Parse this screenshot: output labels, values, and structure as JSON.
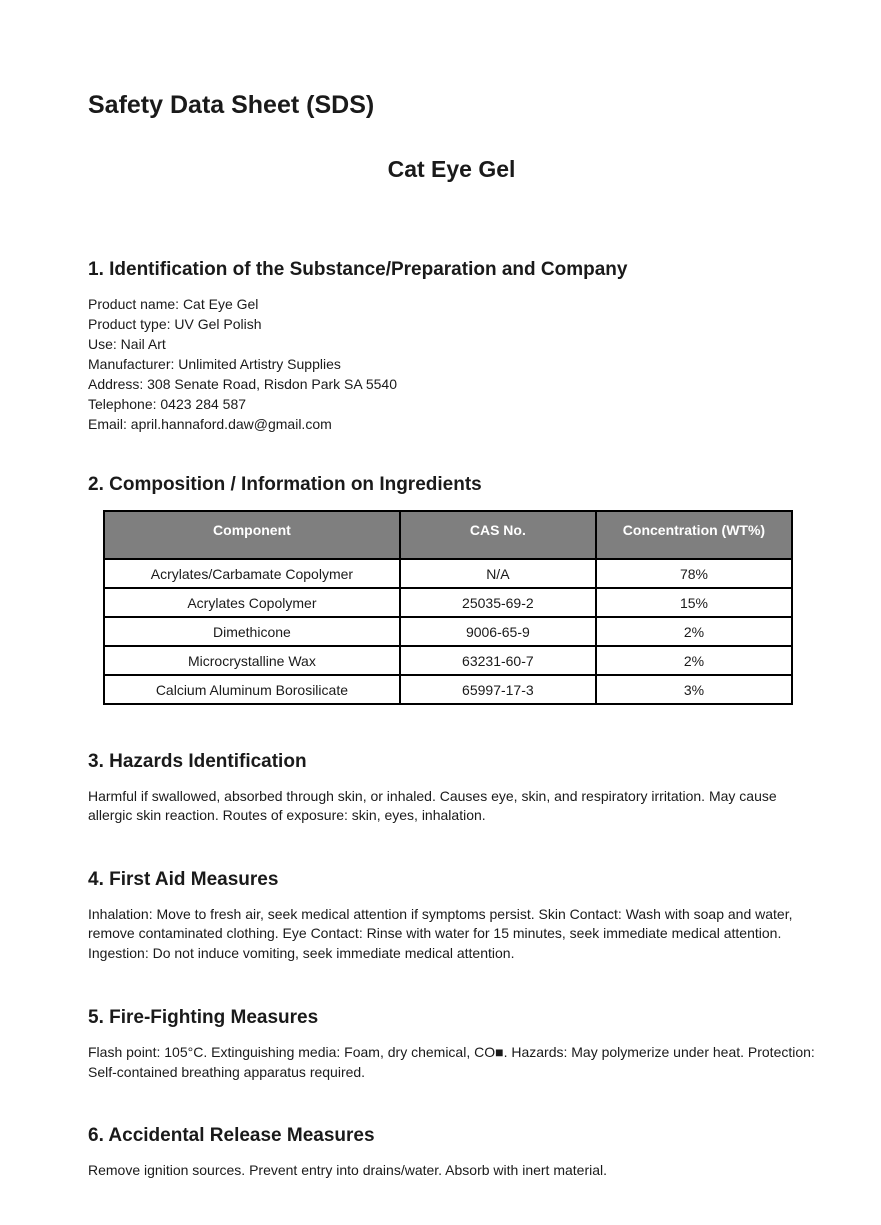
{
  "document": {
    "title": "Safety Data Sheet (SDS)",
    "subtitle": "Cat Eye Gel"
  },
  "sections": [
    {
      "heading": "1. Identification of the Substance/Preparation and Company",
      "lines": [
        "Product name: Cat Eye Gel",
        "Product type: UV Gel Polish",
        "Use: Nail Art",
        "Manufacturer: Unlimited Artistry Supplies",
        "Address: 308 Senate Road, Risdon Park SA 5540",
        "Telephone: 0423 284 587",
        "Email: april.hannaford.daw@gmail.com"
      ]
    },
    {
      "heading": "2. Composition / Information on Ingredients",
      "table": {
        "headers": [
          "Component",
          "CAS No.",
          "Concentration (WT%)"
        ],
        "rows": [
          [
            "Acrylates/Carbamate Copolymer",
            "N/A",
            "78%"
          ],
          [
            "Acrylates Copolymer",
            "25035-69-2",
            "15%"
          ],
          [
            "Dimethicone",
            "9006-65-9",
            "2%"
          ],
          [
            "Microcrystalline Wax",
            "63231-60-7",
            "2%"
          ],
          [
            "Calcium Aluminum Borosilicate",
            "65997-17-3",
            "3%"
          ]
        ]
      }
    },
    {
      "heading": "3. Hazards Identification",
      "body": "Harmful if swallowed, absorbed through skin, or inhaled. Causes eye, skin, and respiratory irritation. May cause allergic skin reaction. Routes of exposure: skin, eyes, inhalation."
    },
    {
      "heading": "4. First Aid Measures",
      "body": "Inhalation: Move to fresh air, seek medical attention if symptoms persist. Skin Contact: Wash with soap and water, remove contaminated clothing. Eye Contact: Rinse with water for 15 minutes, seek immediate medical attention. Ingestion: Do not induce vomiting, seek immediate medical attention."
    },
    {
      "heading": "5. Fire-Fighting Measures",
      "body": "Flash point: 105°C. Extinguishing media: Foam, dry chemical, CO■. Hazards: May polymerize under heat. Protection: Self-contained breathing apparatus required."
    },
    {
      "heading": "6. Accidental Release Measures",
      "body": "Remove ignition sources. Prevent entry into drains/water. Absorb with inert material."
    }
  ],
  "colors": {
    "table_header_bg": "#7f7f7f",
    "table_header_text": "#ffffff",
    "table_border": "#000000",
    "text": "#1a1a1a",
    "page_bg": "#ffffff"
  }
}
